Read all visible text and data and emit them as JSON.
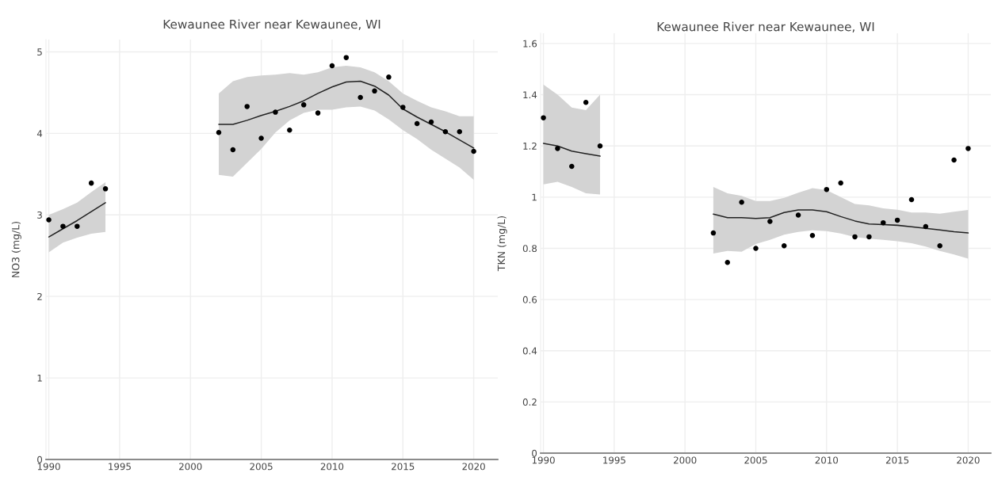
{
  "chart_data": [
    {
      "type": "line",
      "title": "Kewaunee River near Kewaunee, WI",
      "ylabel": "NO3 (mg/L)",
      "xlim": [
        1989.8,
        2021.7
      ],
      "ylim": [
        0,
        5.15
      ],
      "xticks": [
        1990,
        1995,
        2000,
        2005,
        2010,
        2015,
        2020
      ],
      "yticks": [
        0,
        1,
        2,
        3,
        4,
        5
      ],
      "grid": true,
      "legend": false,
      "series": [
        {
          "type": "line",
          "color": "#222222",
          "line_style": "solid",
          "marker": "none",
          "x": [
            1990,
            1991,
            1992,
            1993,
            1994
          ],
          "values": [
            2.73,
            2.83,
            2.93,
            3.04,
            3.15
          ],
          "lower": [
            2.54,
            2.66,
            2.72,
            2.77,
            2.79
          ],
          "upper": [
            3.0,
            3.07,
            3.15,
            3.28,
            3.4
          ]
        },
        {
          "type": "line",
          "color": "#222222",
          "line_style": "solid",
          "marker": "none",
          "x": [
            2002,
            2003,
            2004,
            2005,
            2006,
            2007,
            2008,
            2009,
            2010,
            2011,
            2012,
            2013,
            2014,
            2015,
            2016,
            2017,
            2018,
            2019,
            2020
          ],
          "values": [
            4.11,
            4.11,
            4.16,
            4.22,
            4.27,
            4.33,
            4.4,
            4.49,
            4.57,
            4.63,
            4.64,
            4.58,
            4.47,
            4.3,
            4.2,
            4.11,
            4.02,
            3.92,
            3.82
          ],
          "lower": [
            3.49,
            3.47,
            3.64,
            3.81,
            4.01,
            4.16,
            4.25,
            4.29,
            4.29,
            4.32,
            4.33,
            4.28,
            4.17,
            4.04,
            3.93,
            3.8,
            3.69,
            3.58,
            3.43
          ],
          "upper": [
            4.49,
            4.64,
            4.69,
            4.71,
            4.72,
            4.74,
            4.72,
            4.75,
            4.81,
            4.83,
            4.81,
            4.75,
            4.64,
            4.49,
            4.4,
            4.32,
            4.27,
            4.21,
            4.21
          ]
        },
        {
          "type": "scatter",
          "color": "#000000",
          "marker": "circle",
          "x": [
            1990,
            1991,
            1992,
            1993,
            1994,
            2002,
            2003,
            2004,
            2005,
            2006,
            2007,
            2008,
            2009,
            2010,
            2011,
            2012,
            2013,
            2014,
            2015,
            2016,
            2017,
            2018,
            2019,
            2020
          ],
          "values": [
            2.94,
            2.86,
            2.86,
            3.39,
            3.32,
            4.01,
            3.8,
            4.33,
            3.94,
            4.26,
            4.04,
            4.35,
            4.25,
            4.83,
            4.93,
            4.44,
            4.52,
            4.69,
            4.32,
            4.12,
            4.14,
            4.02,
            4.02,
            3.78
          ]
        }
      ]
    },
    {
      "type": "line",
      "title": "Kewaunee River near Kewaunee, WI",
      "ylabel": "TKN (mg/L)",
      "xlim": [
        1989.8,
        2021.6
      ],
      "ylim": [
        0,
        1.64
      ],
      "xticks": [
        1990,
        1995,
        2000,
        2005,
        2010,
        2015,
        2020
      ],
      "yticks": [
        0,
        0.2,
        0.4,
        0.6,
        0.8,
        {
          "value": 1,
          "label": "1"
        },
        1.2,
        1.4,
        1.6
      ],
      "grid": true,
      "legend": false,
      "series": [
        {
          "type": "line",
          "color": "#222222",
          "line_style": "solid",
          "marker": "none",
          "x": [
            1990,
            1991,
            1992,
            1993,
            1994
          ],
          "values": [
            1.21,
            1.2,
            1.18,
            1.17,
            1.16
          ],
          "lower": [
            1.05,
            1.06,
            1.04,
            1.015,
            1.01
          ],
          "upper": [
            1.44,
            1.4,
            1.35,
            1.34,
            1.4
          ]
        },
        {
          "type": "line",
          "color": "#222222",
          "line_style": "solid",
          "marker": "none",
          "x": [
            2002,
            2003,
            2004,
            2005,
            2006,
            2007,
            2008,
            2009,
            2010,
            2011,
            2012,
            2013,
            2014,
            2015,
            2016,
            2017,
            2018,
            2019,
            2020
          ],
          "values": [
            0.934,
            0.92,
            0.92,
            0.917,
            0.92,
            0.94,
            0.95,
            0.95,
            0.943,
            0.924,
            0.907,
            0.895,
            0.893,
            0.89,
            0.884,
            0.878,
            0.872,
            0.865,
            0.86
          ],
          "lower": [
            0.78,
            0.79,
            0.787,
            0.817,
            0.833,
            0.853,
            0.864,
            0.87,
            0.867,
            0.858,
            0.844,
            0.838,
            0.833,
            0.828,
            0.82,
            0.807,
            0.79,
            0.776,
            0.76
          ],
          "upper": [
            1.04,
            1.015,
            1.005,
            0.985,
            0.985,
            0.997,
            1.017,
            1.035,
            1.027,
            1.0,
            0.973,
            0.968,
            0.956,
            0.951,
            0.94,
            0.94,
            0.935,
            0.943,
            0.95
          ]
        },
        {
          "type": "scatter",
          "color": "#000000",
          "marker": "circle",
          "x": [
            1990,
            1991,
            1992,
            1993,
            1994,
            2002,
            2003,
            2004,
            2005,
            2006,
            2007,
            2008,
            2009,
            2010,
            2011,
            2012,
            2013,
            2014,
            2015,
            2016,
            2017,
            2018,
            2019,
            2020
          ],
          "values": [
            1.31,
            1.19,
            1.12,
            1.37,
            1.2,
            0.86,
            0.745,
            0.98,
            0.8,
            0.905,
            0.81,
            0.93,
            0.85,
            1.03,
            1.055,
            0.845,
            0.845,
            0.9,
            0.91,
            0.99,
            0.885,
            0.81,
            1.145,
            1.19
          ]
        }
      ]
    }
  ]
}
